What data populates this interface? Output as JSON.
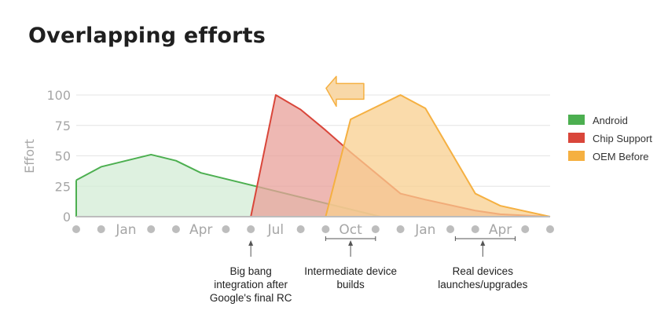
{
  "title": "Overlapping efforts",
  "chart_data": {
    "type": "area",
    "ylabel": "Effort",
    "ylim": [
      0,
      100
    ],
    "yticks": [
      0,
      25,
      50,
      75,
      100
    ],
    "xlim": [
      0,
      19
    ],
    "x_tick_labels": [
      {
        "x": 2,
        "label": "Jan"
      },
      {
        "x": 5,
        "label": "Apr"
      },
      {
        "x": 8,
        "label": "Jul"
      },
      {
        "x": 11,
        "label": "Oct"
      },
      {
        "x": 14,
        "label": "Jan"
      },
      {
        "x": 17,
        "label": "Apr"
      }
    ],
    "month_dots": [
      0,
      1,
      3,
      4,
      6,
      7,
      9,
      10,
      12,
      13,
      15,
      16,
      18,
      19
    ],
    "grid": true,
    "legend_position": "right",
    "series": [
      {
        "name": "Android",
        "color": "#4caf50",
        "fill": "#d3ecd5",
        "points": [
          [
            0,
            30
          ],
          [
            1,
            41
          ],
          [
            2,
            46
          ],
          [
            3,
            51
          ],
          [
            4,
            46
          ],
          [
            5,
            36
          ],
          [
            7,
            26
          ],
          [
            12.2,
            0
          ]
        ]
      },
      {
        "name": "Chip Support",
        "color": "#d9463a",
        "fill": "#e8a09a",
        "points": [
          [
            7,
            0
          ],
          [
            8,
            100
          ],
          [
            9,
            88
          ],
          [
            10,
            71
          ],
          [
            11,
            53
          ],
          [
            12,
            36
          ],
          [
            13,
            19
          ],
          [
            14,
            14
          ],
          [
            16,
            5
          ],
          [
            17,
            2
          ],
          [
            19,
            0
          ]
        ]
      },
      {
        "name": "OEM Before",
        "color": "#f5b041",
        "fill": "#f8cf8f",
        "points": [
          [
            10,
            0
          ],
          [
            11,
            80
          ],
          [
            12,
            90
          ],
          [
            13,
            100
          ],
          [
            14,
            89
          ],
          [
            16,
            19
          ],
          [
            17,
            9
          ],
          [
            19,
            0
          ]
        ]
      }
    ],
    "annotations": [
      {
        "x": 7,
        "lines": [
          "Big bang",
          "integration after",
          "Google's final RC"
        ],
        "bracket": null
      },
      {
        "x": 11,
        "lines": [
          "Intermediate device",
          "builds"
        ],
        "bracket": [
          10,
          12
        ]
      },
      {
        "x": 16.3,
        "lines": [
          "Real devices",
          "launches/upgrades"
        ],
        "bracket": [
          15.2,
          17.6
        ]
      }
    ],
    "arrow": {
      "direction": "left",
      "x": 10.9,
      "y": 103
    }
  }
}
